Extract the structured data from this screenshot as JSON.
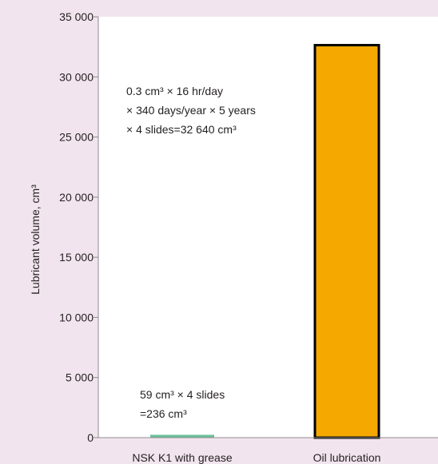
{
  "colors": {
    "background": "#f2e4ee",
    "plot_background": "#ffffff",
    "grease_bar": "#6cc19c",
    "oil_bar": "#f5a800",
    "bar_outline": "#000000",
    "axis": "#8c8c8c",
    "text": "#231f20"
  },
  "chart_data": {
    "type": "bar",
    "ylabel": "Lubricant volume, cm³",
    "ylim": [
      0,
      35000
    ],
    "yticks": [
      0,
      5000,
      10000,
      15000,
      20000,
      25000,
      30000,
      35000
    ],
    "ytick_labels": [
      "0",
      "5 000",
      "10 000",
      "15 000",
      "20 000",
      "25 000",
      "30 000",
      "35 000"
    ],
    "grid": false,
    "categories": [
      "NSK K1 with grease",
      "Oil lubrication"
    ],
    "values": [
      236,
      32640
    ],
    "annotations": [
      {
        "target": "NSK K1 with grease",
        "lines": [
          "59 cm³ × 4 slides",
          "=236 cm³"
        ]
      },
      {
        "target": "Oil lubrication",
        "lines": [
          "0.3 cm³ × 16 hr/day",
          "× 340 days/year × 5 years",
          "× 4 slides=32 640 cm³"
        ]
      }
    ]
  }
}
